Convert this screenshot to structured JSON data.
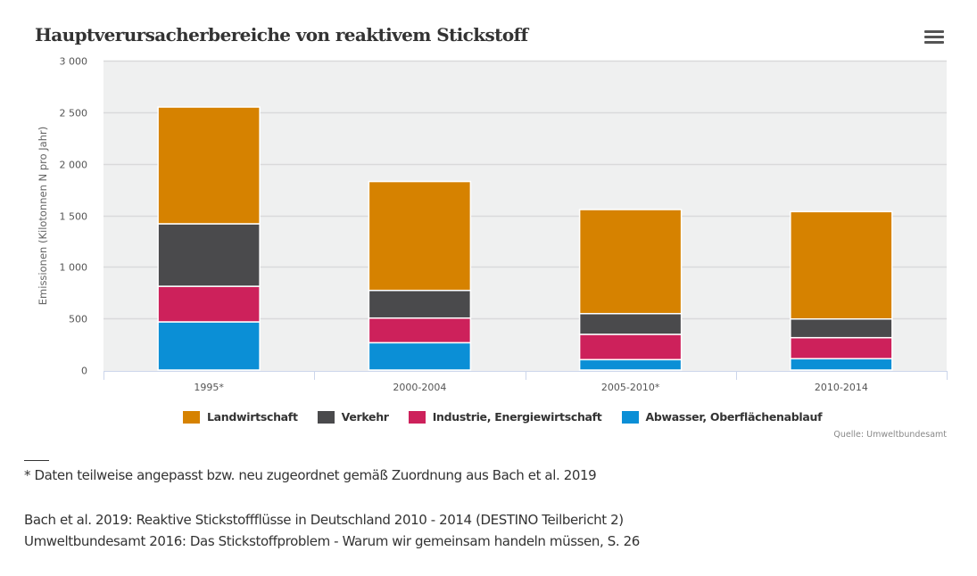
{
  "header": {
    "title": "Hauptverursacherbereiche von reaktivem Stickstoff",
    "menu_icon": "hamburger-menu-icon"
  },
  "chart_data": {
    "type": "bar",
    "stacked": true,
    "title": "Hauptverursacherbereiche von reaktivem Stickstoff",
    "xlabel": "",
    "ylabel": "Emissionen (Kilotonnen N pro Jahr)",
    "ylim": [
      0,
      3000
    ],
    "yticks": [
      0,
      500,
      1000,
      1500,
      2000,
      2500,
      3000
    ],
    "ytick_labels": [
      "0",
      "500",
      "1 000",
      "1 500",
      "2 000",
      "2 500",
      "3 000"
    ],
    "grid": true,
    "legend_position": "bottom-center",
    "categories": [
      "1995*",
      "2000-2004",
      "2005-2010*",
      "2010-2014"
    ],
    "series": [
      {
        "name": "Abwasser, Oberflächenablauf",
        "color": "#0b8fd6",
        "values": [
          467,
          265,
          101,
          110
        ]
      },
      {
        "name": "Industrie, Energiewirtschaft",
        "color": "#cd215b",
        "values": [
          345,
          239,
          245,
          204
        ]
      },
      {
        "name": "Verkehr",
        "color": "#4a4a4c",
        "values": [
          606,
          268,
          201,
          181
        ]
      },
      {
        "name": "Landwirtschaft",
        "color": "#d68200",
        "values": [
          1132,
          1056,
          1009,
          1041
        ]
      }
    ],
    "legend_order": [
      "Landwirtschaft",
      "Verkehr",
      "Industrie, Energiewirtschaft",
      "Abwasser, Oberflächenablauf"
    ],
    "source": "Quelle: Umweltbundesamt"
  },
  "legend": [
    {
      "label": "Landwirtschaft",
      "color": "#d68200"
    },
    {
      "label": "Verkehr",
      "color": "#4a4a4c"
    },
    {
      "label": "Industrie, Energiewirtschaft",
      "color": "#cd215b"
    },
    {
      "label": "Abwasser, Oberflächenablauf",
      "color": "#0b8fd6"
    }
  ],
  "source": "Quelle: Umweltbundesamt",
  "footnotes": {
    "asterisk_note": "* Daten teilweise angepasst bzw. neu zugeordnet gemäß Zuordnung aus Bach et al. 2019",
    "reference_1": "Bach et al. 2019: Reaktive Stickstoffflüsse in Deutschland 2010 - 2014 (DESTINO Teilbericht 2)",
    "reference_2": "Umweltbundesamt 2016: Das Stickstoffproblem - Warum wir gemeinsam handeln müssen, S. 26"
  }
}
